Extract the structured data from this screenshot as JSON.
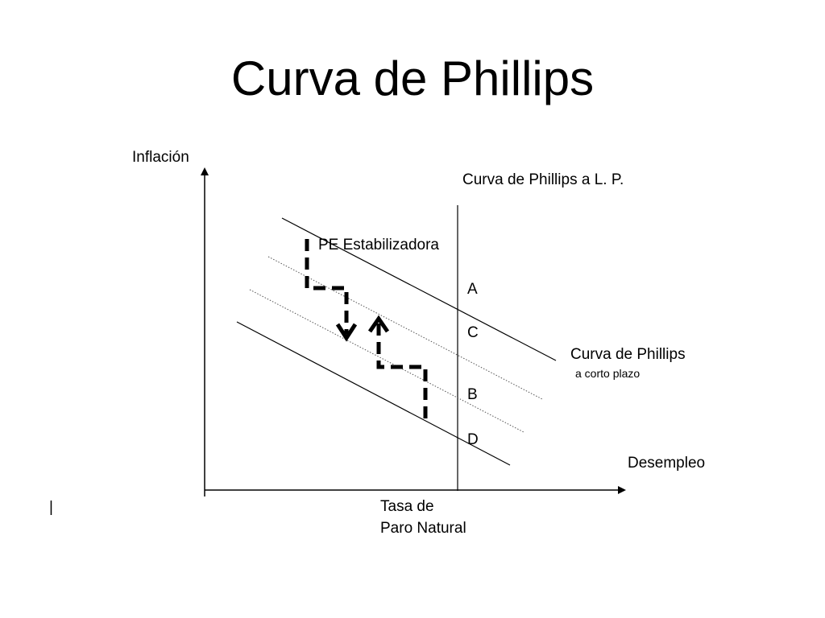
{
  "title": "Curva de Phillips",
  "axes": {
    "y_label": "Inflación",
    "x_label": "Desempleo",
    "x_marker_line1": "Tasa de",
    "x_marker_line2": "Paro Natural"
  },
  "curves": {
    "long_run_label": "Curva de Phillips a L. P.",
    "short_run_label": "Curva de Phillips",
    "short_run_sublabel": "a corto plazo",
    "policy_label": "PE Estabilizadora"
  },
  "points": {
    "a": "A",
    "b": "B",
    "c": "C",
    "d": "D"
  },
  "misc": {
    "cursor_mark": "|"
  },
  "colors": {
    "line": "#000000",
    "dotted": "#555555",
    "background": "#ffffff"
  }
}
